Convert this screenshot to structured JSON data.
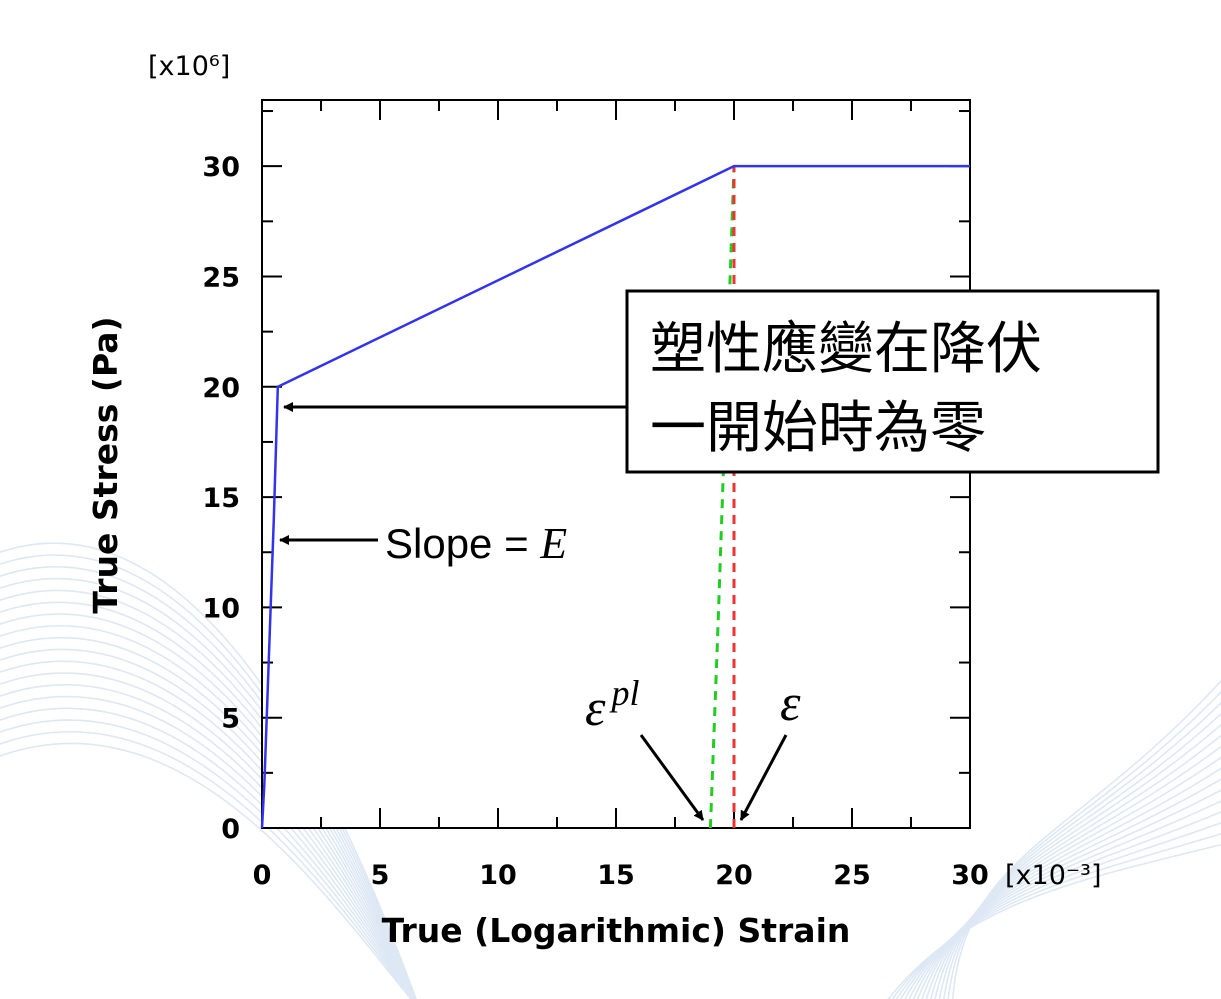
{
  "chart_data": {
    "type": "line",
    "title": "",
    "xlabel": "True (Logarithmic) Strain",
    "ylabel": "True Stress (Pa)",
    "x_multiplier": "[x10⁻³]",
    "y_multiplier": "[x10⁶]",
    "xlim": [
      0,
      30
    ],
    "ylim": [
      0,
      33
    ],
    "x_ticks": [
      "0",
      "5",
      "10",
      "15",
      "20",
      "25",
      "30"
    ],
    "y_ticks": [
      "0",
      "5",
      "10",
      "15",
      "20",
      "25",
      "30"
    ],
    "grid": false,
    "series": [
      {
        "x": [
          0,
          0.1,
          0.5,
          0.67,
          20,
          30
        ],
        "y": [
          0,
          2,
          14,
          20,
          30,
          30
        ],
        "color": "#3333ee",
        "style": "solid"
      }
    ],
    "guides": [
      {
        "x": [
          19,
          19.3,
          20
        ],
        "y": [
          0,
          8.5,
          30
        ],
        "color": "#22cc22",
        "style": "dashed"
      },
      {
        "x": [
          20,
          20
        ],
        "y": [
          0,
          30
        ],
        "color": "#ee3333",
        "style": "dashed"
      }
    ]
  },
  "annotations": {
    "slope_text": "Slope = ",
    "slope_symbol": "E",
    "epsilon_pl_base": "ε",
    "epsilon_pl_sup": "pl",
    "epsilon": "ε",
    "box_line1": "塑性應變在降伏",
    "box_line2": "一開始時為零"
  }
}
